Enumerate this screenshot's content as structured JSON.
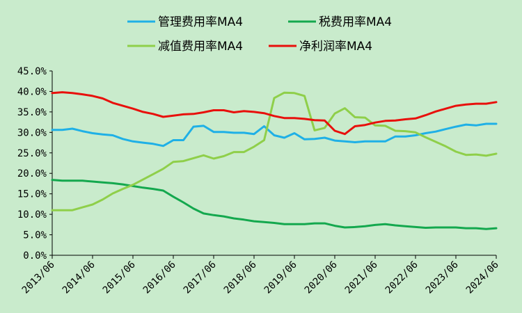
{
  "chart_data": {
    "type": "line",
    "x": [
      "2013/06",
      "2013/09",
      "2013/12",
      "2014/03",
      "2014/06",
      "2014/09",
      "2014/12",
      "2015/03",
      "2015/06",
      "2015/09",
      "2015/12",
      "2016/03",
      "2016/06",
      "2016/09",
      "2016/12",
      "2017/03",
      "2017/06",
      "2017/09",
      "2017/12",
      "2018/03",
      "2018/06",
      "2018/09",
      "2018/12",
      "2019/03",
      "2019/06",
      "2019/09",
      "2019/12",
      "2020/03",
      "2020/06",
      "2020/09",
      "2020/12",
      "2021/03",
      "2021/06",
      "2021/09",
      "2021/12",
      "2022/03",
      "2022/06",
      "2022/09",
      "2022/12",
      "2023/03",
      "2023/06",
      "2023/09",
      "2023/12",
      "2024/03",
      "2024/06"
    ],
    "xticks": [
      "2013/06",
      "2014/06",
      "2015/06",
      "2016/06",
      "2017/06",
      "2018/06",
      "2019/06",
      "2020/06",
      "2021/06",
      "2022/06",
      "2023/06",
      "2024/06"
    ],
    "ylim": [
      0,
      45
    ],
    "yticks": [
      0,
      5,
      10,
      15,
      20,
      25,
      30,
      35,
      40,
      45
    ],
    "ytick_labels": [
      "0.0%",
      "5.0%",
      "10.0%",
      "15.0%",
      "20.0%",
      "25.0%",
      "30.0%",
      "35.0%",
      "40.0%",
      "45.0%"
    ],
    "legend_position": "top",
    "series": [
      {
        "name": "管理费用率MA4",
        "color": "#1fb0e6",
        "values": [
          30.6,
          30.6,
          30.9,
          30.3,
          29.8,
          29.5,
          29.3,
          28.4,
          27.8,
          27.5,
          27.2,
          26.7,
          28.1,
          28.1,
          31.4,
          31.6,
          30.1,
          30.1,
          29.9,
          29.9,
          29.6,
          31.5,
          29.3,
          28.7,
          29.8,
          28.3,
          28.4,
          28.7,
          28.0,
          27.8,
          27.6,
          27.8,
          27.8,
          27.8,
          29.0,
          29.0,
          29.3,
          29.8,
          30.2,
          30.8,
          31.4,
          31.9,
          31.7,
          32.1,
          32.1
        ]
      },
      {
        "name": "税费用率MA4",
        "color": "#14a84e",
        "values": [
          18.4,
          18.2,
          18.2,
          18.2,
          18.0,
          17.8,
          17.6,
          17.3,
          16.9,
          16.5,
          16.2,
          15.8,
          14.3,
          12.9,
          11.4,
          10.2,
          9.8,
          9.5,
          9.0,
          8.7,
          8.3,
          8.1,
          7.9,
          7.6,
          7.6,
          7.6,
          7.8,
          7.8,
          7.2,
          6.8,
          6.9,
          7.1,
          7.4,
          7.6,
          7.3,
          7.1,
          6.9,
          6.7,
          6.8,
          6.8,
          6.8,
          6.6,
          6.6,
          6.4,
          6.6
        ]
      },
      {
        "name": "减值费用率MA4",
        "color": "#8fcf4a",
        "values": [
          11.0,
          11.0,
          11.0,
          11.7,
          12.4,
          13.6,
          15.1,
          16.2,
          17.2,
          18.5,
          19.8,
          21.1,
          22.8,
          23.0,
          23.7,
          24.4,
          23.6,
          24.2,
          25.2,
          25.2,
          26.5,
          28.1,
          38.4,
          39.7,
          39.6,
          38.9,
          30.5,
          31.1,
          34.6,
          35.9,
          33.7,
          33.6,
          31.7,
          31.6,
          30.4,
          30.3,
          30.0,
          28.8,
          27.7,
          26.6,
          25.3,
          24.5,
          24.6,
          24.3,
          24.8
        ]
      },
      {
        "name": "净利润率MA4",
        "color": "#e8100c",
        "values": [
          39.6,
          39.8,
          39.6,
          39.3,
          38.9,
          38.3,
          37.2,
          36.5,
          35.8,
          35.0,
          34.5,
          33.8,
          34.1,
          34.4,
          34.5,
          34.9,
          35.4,
          35.4,
          34.9,
          35.2,
          35.0,
          34.7,
          34.0,
          33.5,
          33.5,
          33.3,
          33.0,
          32.9,
          30.4,
          29.6,
          31.5,
          31.8,
          32.4,
          32.8,
          32.9,
          33.2,
          33.4,
          34.2,
          35.1,
          35.8,
          36.5,
          36.8,
          37.0,
          37.0,
          37.4
        ]
      }
    ]
  }
}
